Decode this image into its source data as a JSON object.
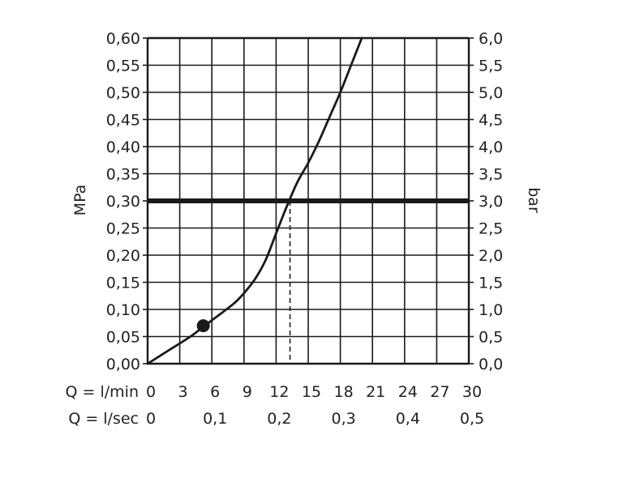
{
  "chart_data": {
    "type": "line",
    "left_axis": {
      "label": "MPa",
      "ticks": [
        "0,00",
        "0,05",
        "0,10",
        "0,15",
        "0,20",
        "0,25",
        "0,30",
        "0,35",
        "0,40",
        "0,45",
        "0,50",
        "0,55",
        "0,60"
      ],
      "range": [
        0,
        0.6
      ]
    },
    "right_axis": {
      "label": "bar",
      "ticks": [
        "0,0",
        "0,5",
        "1,0",
        "1,5",
        "2,0",
        "2,5",
        "3,0",
        "3,5",
        "4,0",
        "4,5",
        "5,0",
        "5,5",
        "6,0"
      ],
      "range": [
        0,
        6
      ]
    },
    "x_axis_lmin": {
      "label": "Q = l/min",
      "ticks": [
        "0",
        "3",
        "6",
        "9",
        "12",
        "15",
        "18",
        "21",
        "24",
        "27",
        "30"
      ],
      "range": [
        0,
        30
      ]
    },
    "x_axis_lsec": {
      "label": "Q = l/sec",
      "ticks": [
        "0",
        "0,1",
        "0,2",
        "0,3",
        "0,4",
        "0,5"
      ],
      "range": [
        0,
        0.5
      ]
    },
    "grid": true,
    "series": [
      {
        "x": [
          0,
          2,
          4,
          5,
          6,
          8,
          9,
          10,
          11,
          12,
          13,
          14,
          15,
          16,
          17,
          18,
          19,
          20
        ],
        "y": [
          0,
          0.025,
          0.05,
          0.065,
          0.08,
          0.11,
          0.13,
          0.155,
          0.19,
          0.24,
          0.29,
          0.335,
          0.37,
          0.41,
          0.455,
          0.5,
          0.55,
          0.6
        ]
      }
    ],
    "marker": {
      "x": 5.2,
      "y": 0.07
    },
    "reference_line": {
      "y": 0.3
    },
    "reference_drop": {
      "x": 13.3,
      "y": 0.3
    }
  }
}
